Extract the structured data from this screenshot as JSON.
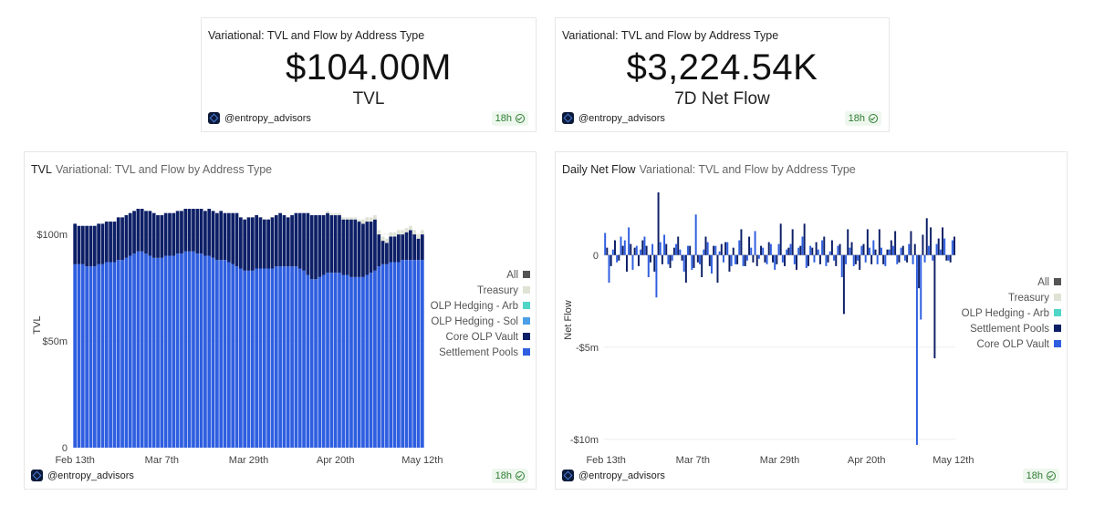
{
  "counters": [
    {
      "title": "Variational: TVL and Flow by Address Type",
      "value": "$104.00M",
      "label": "TVL",
      "user": "@entropy_advisors",
      "age": "18h"
    },
    {
      "title": "Variational: TVL and Flow by Address Type",
      "value": "$3,224.54K",
      "label": "7D Net Flow",
      "user": "@entropy_advisors",
      "age": "18h"
    }
  ],
  "tvl_card": {
    "title": "TVL",
    "subtitle": "Variational: TVL and Flow by Address Type",
    "user": "@entropy_advisors",
    "age": "18h"
  },
  "flow_card": {
    "title": "Daily Net Flow",
    "subtitle": "Variational: TVL and Flow by Address Type",
    "user": "@entropy_advisors",
    "age": "18h"
  },
  "colors": {
    "all": "#555555",
    "treasury": "#dfe3d6",
    "olp_hedging": "#4fd6c6",
    "olp_hedging_sol": "#4a9fe8",
    "core_olp": "#0d1f66",
    "settlement": "#2f5fe0"
  },
  "chart_data": [
    {
      "type": "bar",
      "stacked": true,
      "title": "TVL",
      "ylabel": "TVL",
      "ylim": [
        0,
        115
      ],
      "yticks": [
        "0",
        "$50m",
        "$100m"
      ],
      "ytick_values": [
        0,
        50,
        100
      ],
      "xticks": [
        "Feb 13th",
        "Mar 7th",
        "Mar 29th",
        "Apr 20th",
        "May 12th"
      ],
      "legend": [
        "All",
        "Treasury",
        "OLP Hedging - Arb",
        "OLP Hedging - Sol",
        "Core OLP Vault",
        "Settlement Pools"
      ],
      "legend_colors": [
        "#555555",
        "#dfe3d6",
        "#4fd6c6",
        "#4a9fe8",
        "#0d1f66",
        "#2f5fe0"
      ],
      "legend_position": "right",
      "days": 89,
      "series": [
        {
          "name": "Settlement Pools",
          "color": "#2f5fe0",
          "values": [
            86,
            86,
            86,
            85,
            85,
            85,
            86,
            86,
            87,
            87,
            87,
            88,
            88,
            89,
            90,
            91,
            92,
            92,
            91,
            90,
            89,
            89,
            89,
            90,
            90,
            90,
            91,
            91,
            92,
            92,
            92,
            91,
            91,
            90,
            90,
            89,
            88,
            88,
            88,
            87,
            86,
            85,
            84,
            83,
            83,
            83,
            84,
            84,
            84,
            84,
            84,
            85,
            85,
            85,
            85,
            85,
            85,
            84,
            83,
            81,
            79,
            79,
            80,
            81,
            82,
            82,
            82,
            82,
            81,
            81,
            80,
            80,
            80,
            80,
            81,
            82,
            83,
            85,
            86,
            86,
            87,
            87,
            87,
            88,
            88,
            88,
            88,
            88,
            88
          ]
        },
        {
          "name": "Core OLP Vault",
          "color": "#0d1f66",
          "values": [
            19,
            18,
            18,
            19,
            19,
            19,
            19,
            19,
            19,
            19,
            19,
            20,
            20,
            20,
            20,
            20,
            20,
            20,
            20,
            21,
            21,
            20,
            20,
            20,
            20,
            20,
            20,
            20,
            20,
            20,
            20,
            21,
            21,
            21,
            22,
            22,
            22,
            23,
            22,
            23,
            24,
            25,
            24,
            24,
            25,
            25,
            25,
            24,
            23,
            23,
            24,
            24,
            25,
            24,
            23,
            24,
            25,
            26,
            27,
            29,
            30,
            30,
            29,
            28,
            28,
            27,
            27,
            27,
            26,
            26,
            27,
            27,
            26,
            25,
            25,
            24,
            24,
            15,
            11,
            10,
            12,
            12,
            13,
            12,
            13,
            14,
            12,
            10,
            12
          ]
        },
        {
          "name": "Treasury",
          "color": "#dfe3d6",
          "values": [
            0,
            0,
            0,
            0,
            0,
            0,
            0,
            0,
            0,
            0,
            0,
            0,
            0,
            0,
            0,
            0,
            0,
            0,
            0,
            0,
            0,
            0,
            0,
            0,
            0,
            0,
            0,
            0,
            0,
            0,
            0,
            0,
            0,
            0,
            0,
            0,
            0,
            0,
            0,
            0,
            0,
            0,
            0,
            0,
            0,
            0,
            0,
            0,
            0,
            0,
            0,
            0,
            0,
            0,
            0,
            0,
            0,
            0,
            0,
            0,
            0,
            0,
            0,
            0,
            1,
            1,
            1,
            1,
            1,
            1,
            1,
            1,
            1,
            2,
            2,
            2,
            2,
            2,
            2,
            2,
            2,
            2,
            2,
            2,
            2,
            2,
            2,
            2,
            2
          ]
        }
      ]
    },
    {
      "type": "bar",
      "title": "Daily Net Flow",
      "ylabel": "Net Flow",
      "ylim": [
        -10.5,
        3.5
      ],
      "yticks": [
        "-$10m",
        "-$5m",
        "0"
      ],
      "ytick_values": [
        -10,
        -5,
        0
      ],
      "xticks": [
        "Feb 13th",
        "Mar 7th",
        "Mar 29th",
        "Apr 20th",
        "May 12th"
      ],
      "legend": [
        "All",
        "Treasury",
        "OLP Hedging - Arb",
        "Settlement Pools",
        "Core OLP Vault"
      ],
      "legend_colors": [
        "#555555",
        "#dfe3d6",
        "#4fd6c6",
        "#0d1f66",
        "#2f5fe0"
      ],
      "legend_position": "right",
      "days": 89,
      "series": [
        {
          "name": "Core OLP Vault",
          "color": "#2f5fe0",
          "values": [
            1.2,
            -1.5,
            0.3,
            -0.4,
            1.0,
            0.8,
            1.5,
            -0.8,
            0.5,
            0.3,
            1.0,
            -1.2,
            0.6,
            -2.3,
            0.7,
            1.1,
            -0.5,
            -0.3,
            0.6,
            0.3,
            -0.9,
            0.5,
            -0.8,
            2.2,
            -0.5,
            0.3,
            0.7,
            -1.0,
            0.5,
            0.2,
            -0.4,
            0.7,
            -0.6,
            -0.5,
            0.8,
            -0.6,
            -0.3,
            0.4,
            1.3,
            -0.2,
            0.4,
            -0.5,
            0.6,
            -0.8,
            0.6,
            -0.4,
            0.3,
            0.6,
            -0.5,
            0.4,
            1.0,
            -0.7,
            0.5,
            -0.4,
            0.3,
            0.8,
            -0.6,
            0.2,
            -0.3,
            0.5,
            -1.2,
            -0.5,
            0.4,
            -0.6,
            -0.3,
            0.5,
            -0.4,
            0.4,
            0.8,
            -0.5,
            0.4,
            -0.6,
            0.3,
            0.5,
            -0.5,
            0.4,
            -0.3,
            0.6,
            -0.5,
            -10.3,
            -3.5,
            -0.4,
            0.5,
            -0.3,
            0.6,
            0.3,
            0.9,
            -0.3,
            0.8
          ]
        },
        {
          "name": "Settlement Pools",
          "color": "#0d1f66",
          "values": [
            0.4,
            -0.6,
            0.8,
            -0.3,
            0.5,
            -0.9,
            0.6,
            0.4,
            -0.6,
            0.8,
            0.5,
            -0.4,
            -0.9,
            3.4,
            -0.5,
            0.6,
            -0.7,
            0.4,
            1.0,
            -0.3,
            -1.5,
            0.5,
            -0.7,
            -0.4,
            -1.2,
            1.0,
            -0.6,
            0.5,
            -1.5,
            0.6,
            0.7,
            -0.9,
            0.4,
            -0.5,
            1.4,
            -0.6,
            1.0,
            -0.4,
            -0.6,
            0.5,
            -0.4,
            0.7,
            -0.4,
            -0.5,
            1.7,
            -0.6,
            0.4,
            1.4,
            -0.8,
            0.5,
            1.7,
            -0.6,
            0.4,
            0.7,
            -0.5,
            1.0,
            -0.4,
            0.8,
            -0.6,
            0.6,
            -3.2,
            1.4,
            0.7,
            -0.5,
            -0.8,
            0.6,
            1.4,
            -0.5,
            0.3,
            1.4,
            -0.5,
            0.3,
            0.8,
            1.3,
            -0.4,
            0.5,
            -0.4,
            1.3,
            0.6,
            -1.8,
            1.1,
            2.0,
            1.5,
            -5.6,
            0.9,
            1.5,
            -0.3,
            -0.4,
            1.0
          ]
        }
      ]
    }
  ]
}
